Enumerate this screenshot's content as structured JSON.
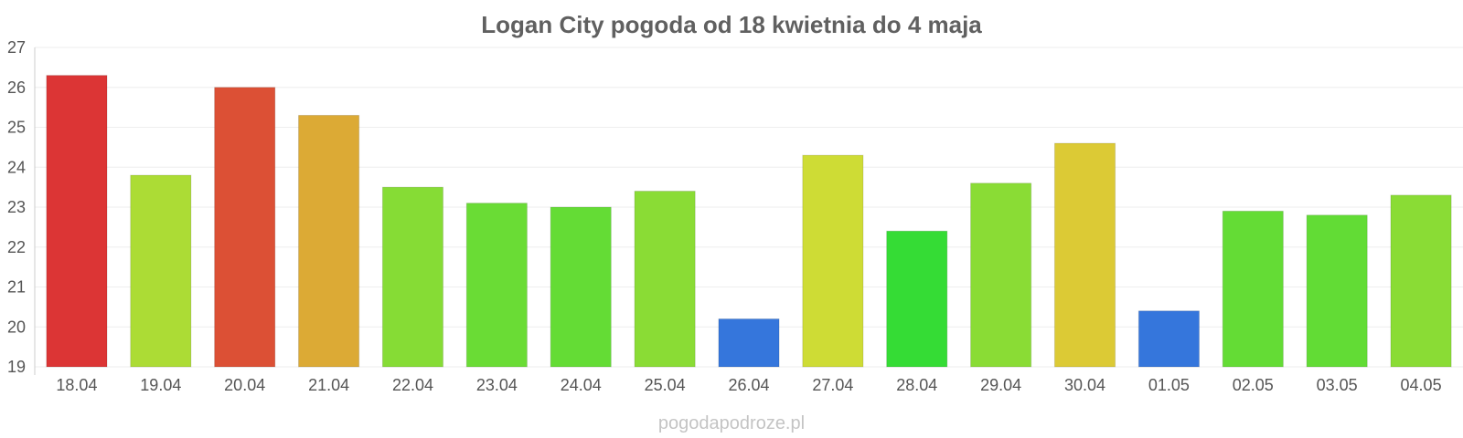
{
  "chart_data": {
    "type": "bar",
    "title": "Logan City pogoda od 18 kwietnia do 4 maja",
    "xlabel": "",
    "ylabel": "",
    "ylim": [
      19,
      27
    ],
    "yticks": [
      "19",
      "20",
      "21",
      "22",
      "23",
      "24",
      "25",
      "26",
      "27"
    ],
    "grid": true,
    "categories": [
      "18.04",
      "19.04",
      "20.04",
      "21.04",
      "22.04",
      "23.04",
      "24.04",
      "25.04",
      "26.04",
      "27.04",
      "28.04",
      "29.04",
      "30.04",
      "01.05",
      "02.05",
      "03.05",
      "04.05"
    ],
    "values": [
      26.3,
      23.8,
      26.0,
      25.3,
      23.5,
      23.1,
      23.0,
      23.4,
      20.2,
      24.3,
      22.4,
      23.6,
      24.6,
      20.4,
      22.9,
      22.8,
      23.3
    ],
    "colors": [
      "#dc3535",
      "#acdc35",
      "#dc5035",
      "#dcaa35",
      "#86dc35",
      "#6adc35",
      "#64dc35",
      "#8adc35",
      "#3576dc",
      "#cedc35",
      "#35dc35",
      "#8adc35",
      "#dcca35",
      "#3576dc",
      "#64dc35",
      "#62dc35",
      "#8adc35"
    ]
  },
  "watermark": "pogodapodroze.pl"
}
